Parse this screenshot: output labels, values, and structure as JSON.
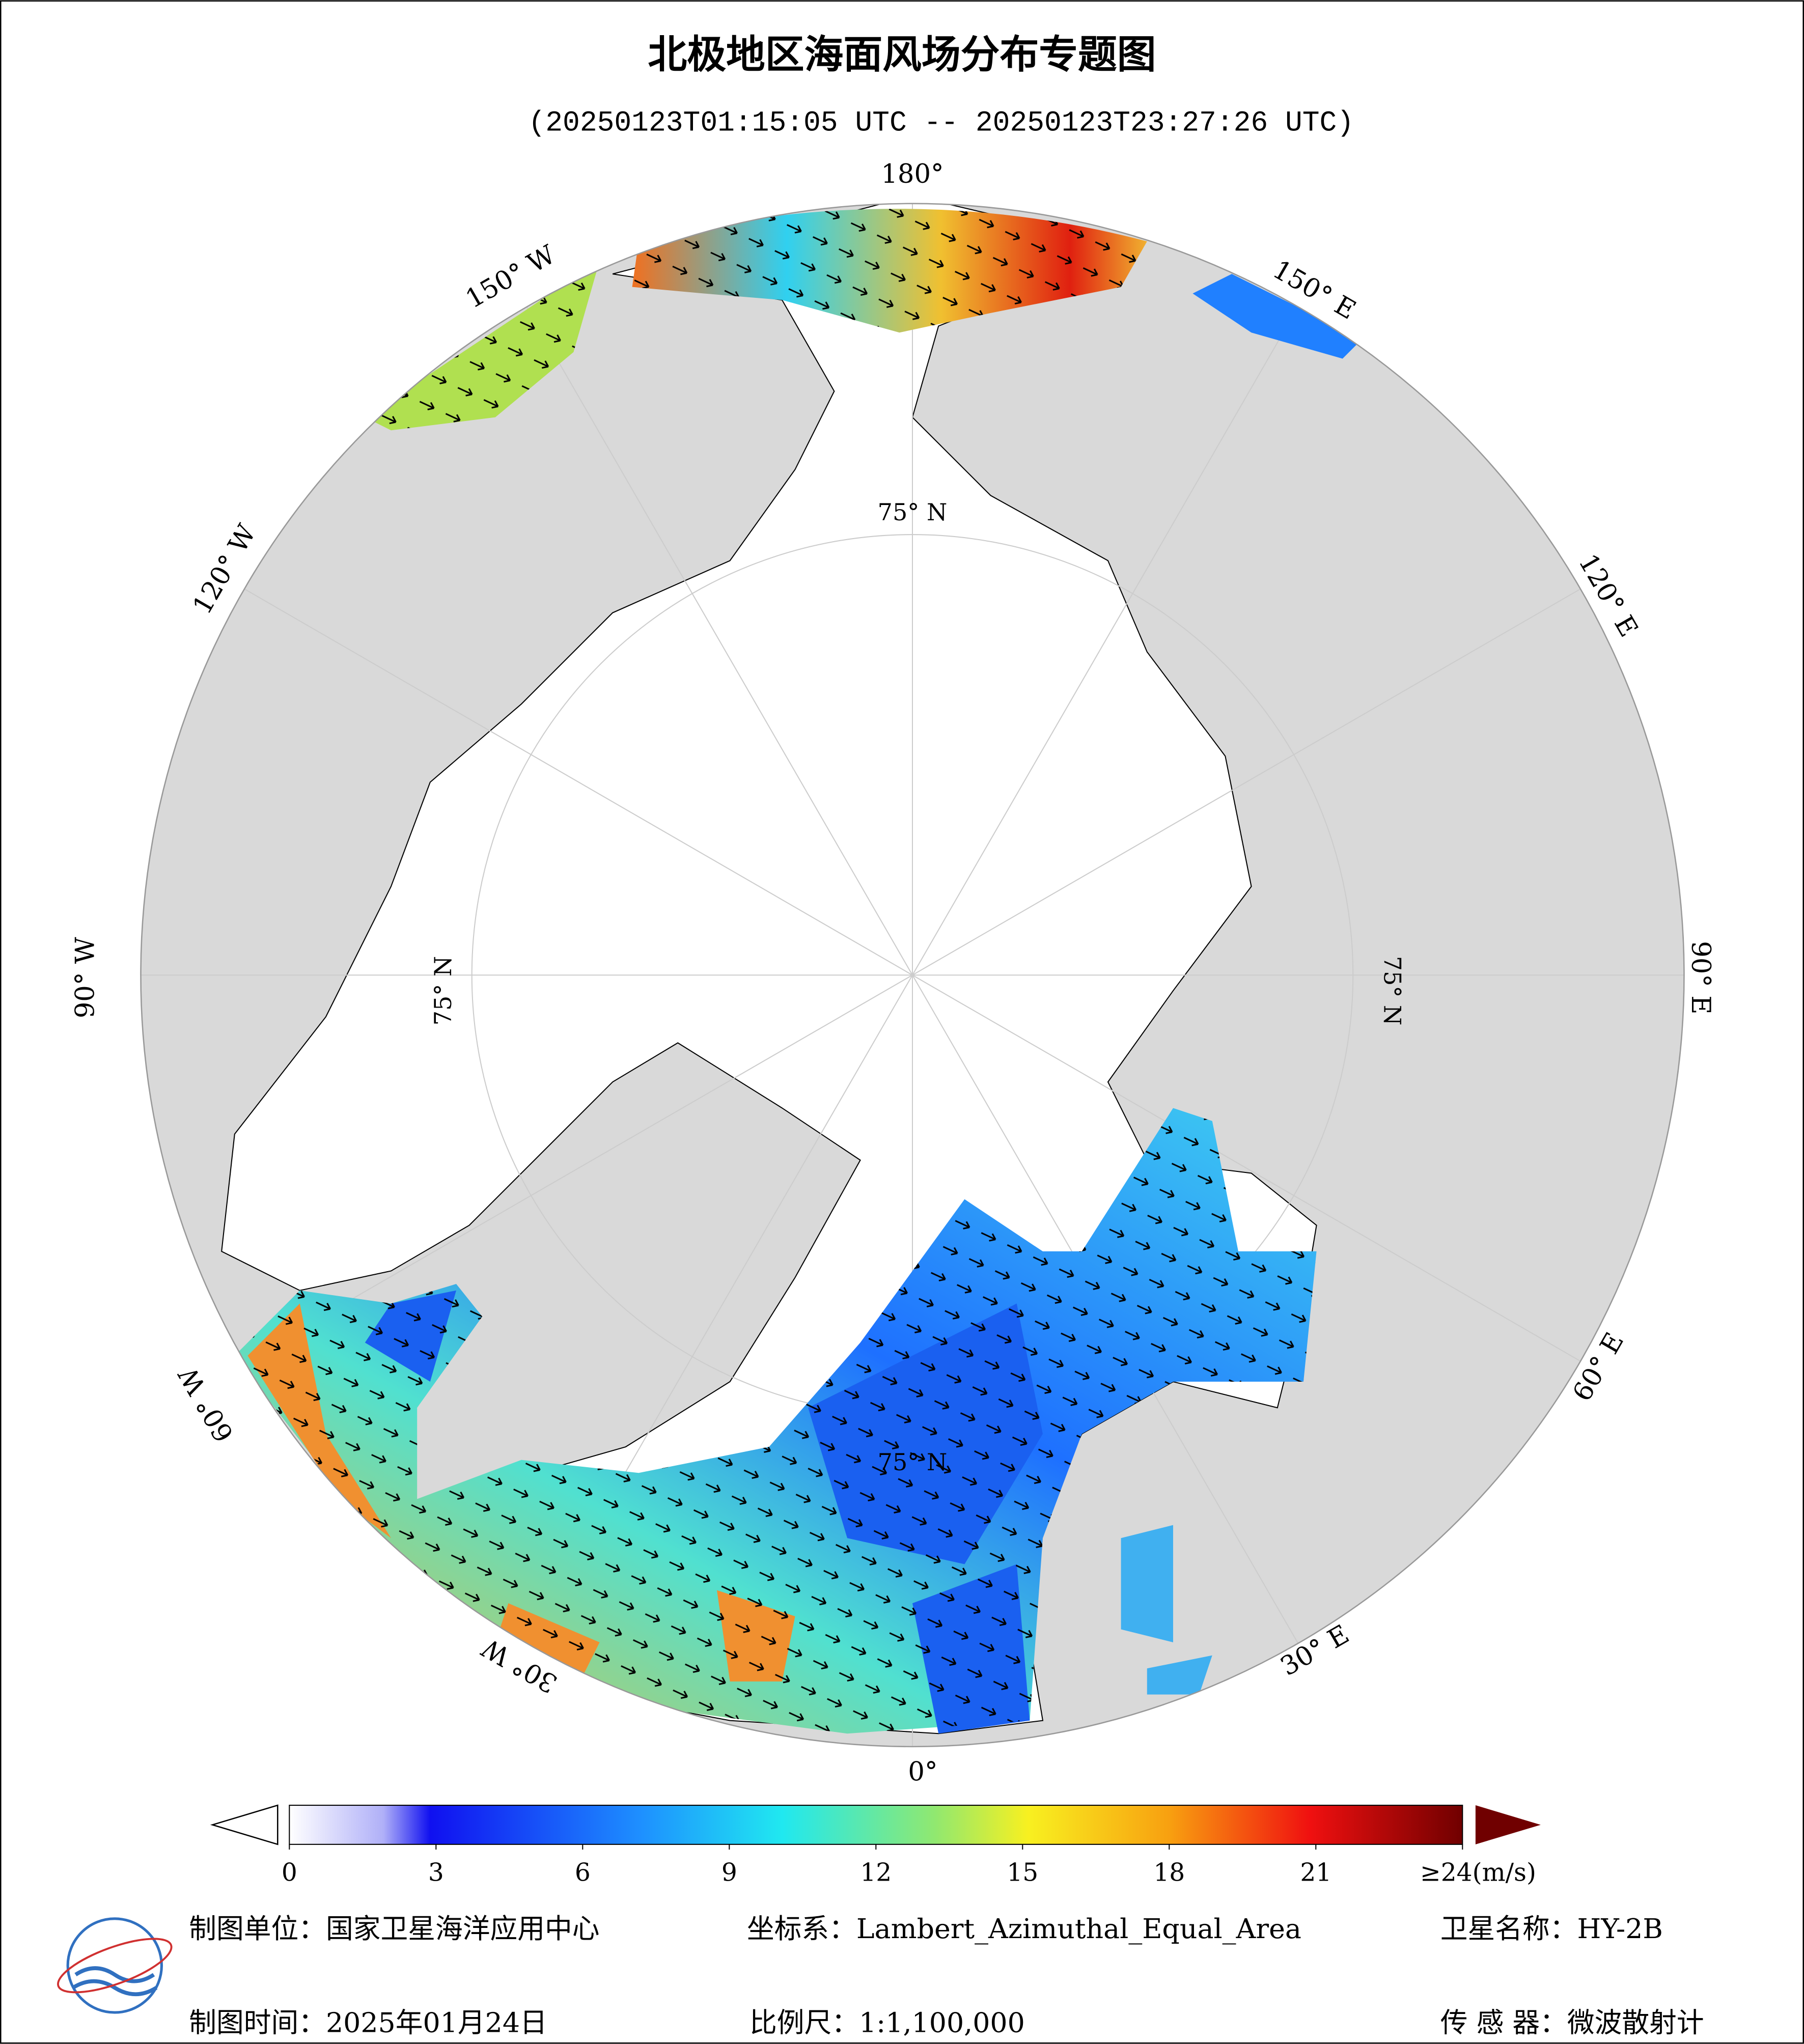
{
  "header": {
    "title": "北极地区海面风场分布专题图",
    "subtitle": "(20250123T01:15:05 UTC -- 20250123T23:27:26 UTC)"
  },
  "map": {
    "meridian_labels": [
      "180°",
      "150° E",
      "120° E",
      "90° E",
      "60° E",
      "30° E",
      "0°",
      "30° W",
      "60° W",
      "90° W",
      "120° W",
      "150° W"
    ],
    "parallel_labels": [
      "75° N",
      "75° N",
      "75° N",
      "75° N"
    ]
  },
  "colorbar": {
    "range": [
      0,
      24
    ],
    "ticks": [
      0,
      3,
      6,
      9,
      12,
      15,
      18,
      21,
      {
        "value": 24,
        "label": "≥24(m/s)"
      }
    ]
  },
  "footer": {
    "items": [
      "制图单位：国家卫星海洋应用中心",
      "坐标系：Lambert_Azimuthal_Equal_Area",
      "卫星名称：HY-2B",
      "制图时间：2025年01月24日",
      "比例尺：1:1,100,000",
      "传 感 器：微波散射计"
    ]
  }
}
